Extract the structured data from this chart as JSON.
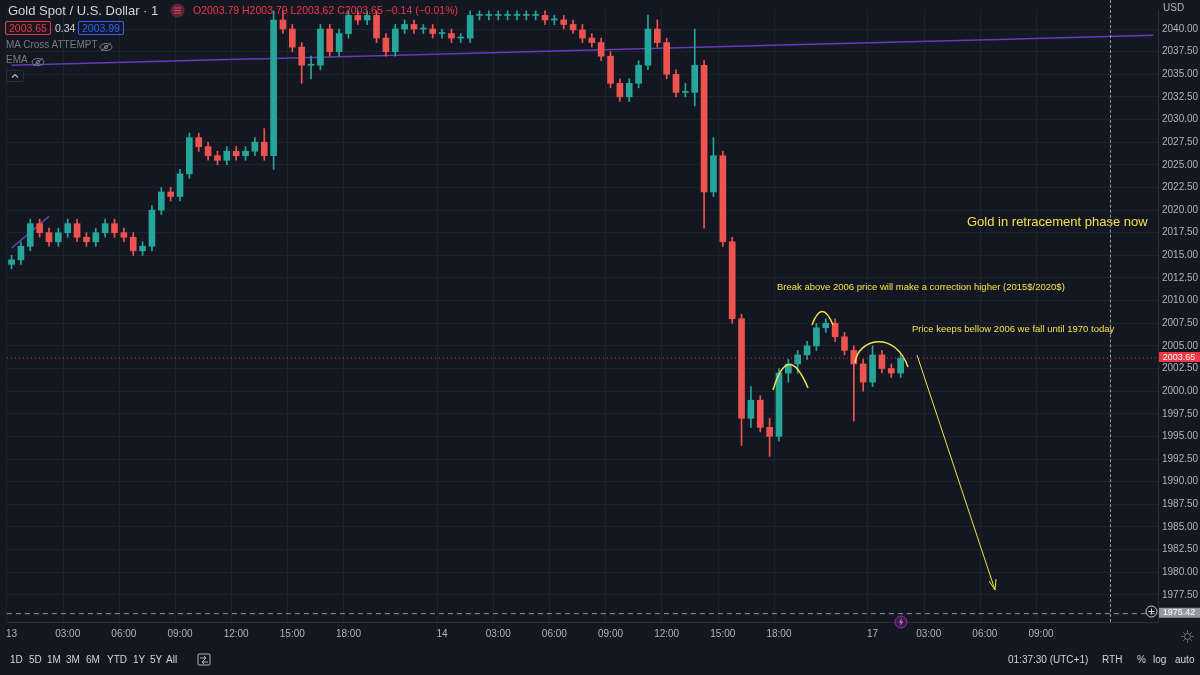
{
  "chart_data": {
    "type": "candlestick",
    "title": "Gold Spot / U.S. Dollar · 1",
    "subtitle": "O2003.79 H2003.79 L2003.62 C2003.65 −0.14 (−0.01%)",
    "ylabel": "USD",
    "categories": [
      "13",
      null,
      null,
      null,
      null,
      null,
      "03:00",
      null,
      null,
      null,
      null,
      null,
      "06:00",
      null,
      null,
      null,
      null,
      null,
      "09:00",
      null,
      null,
      null,
      null,
      null,
      "12:00",
      null,
      null,
      null,
      null,
      null,
      "15:00",
      null,
      null,
      null,
      null,
      null,
      "18:00",
      null,
      null,
      null,
      null,
      null,
      null,
      null,
      null,
      null,
      "14",
      null,
      null,
      null,
      null,
      null,
      "03:00",
      null,
      null,
      null,
      null,
      null,
      "06:00",
      null,
      null,
      null,
      null,
      null,
      "09:00",
      null,
      null,
      null,
      null,
      null,
      "12:00",
      null,
      null,
      null,
      null,
      null,
      "15:00",
      null,
      null,
      null,
      null,
      null,
      "18:00",
      null,
      null,
      null,
      null,
      null,
      null,
      null,
      null,
      null,
      "17",
      null,
      null,
      null,
      null,
      null,
      "03:00",
      null,
      null,
      null,
      null,
      null,
      "06:00",
      null,
      null,
      null,
      null,
      null,
      "09:00",
      null,
      null,
      null,
      null,
      null,
      null,
      null,
      null,
      null,
      null,
      null,
      null
    ],
    "ohlc": [
      [
        2014,
        2015,
        2013.5,
        2014.5
      ],
      [
        2014.5,
        2016.5,
        2014,
        2016
      ],
      [
        2016,
        2019,
        2015.5,
        2018.5
      ],
      [
        2018.5,
        2019,
        2017,
        2017.5
      ],
      [
        2017.5,
        2018,
        2016,
        2016.5
      ],
      [
        2016.5,
        2018,
        2016,
        2017.5
      ],
      [
        2017.5,
        2019,
        2017,
        2018.5
      ],
      [
        2018.5,
        2019,
        2016.5,
        2017
      ],
      [
        2017,
        2017.5,
        2016,
        2016.5
      ],
      [
        2016.5,
        2018,
        2016,
        2017.5
      ],
      [
        2017.5,
        2019,
        2017,
        2018.5
      ],
      [
        2018.5,
        2019,
        2017,
        2017.5
      ],
      [
        2017.5,
        2018,
        2016.5,
        2017
      ],
      [
        2017,
        2017.5,
        2015,
        2015.5
      ],
      [
        2015.5,
        2016.5,
        2015,
        2016
      ],
      [
        2016,
        2020.5,
        2015.5,
        2020
      ],
      [
        2020,
        2022.5,
        2019.5,
        2022
      ],
      [
        2022,
        2022.5,
        2021,
        2021.5
      ],
      [
        2021.5,
        2024.5,
        2021,
        2024
      ],
      [
        2024,
        2028.5,
        2023.5,
        2028
      ],
      [
        2028,
        2028.5,
        2026.5,
        2027
      ],
      [
        2027,
        2027.5,
        2025.5,
        2026
      ],
      [
        2026,
        2026.5,
        2025,
        2025.5
      ],
      [
        2025.5,
        2027,
        2025,
        2026.5
      ],
      [
        2026.5,
        2027,
        2025.5,
        2026
      ],
      [
        2026,
        2027,
        2025.5,
        2026.5
      ],
      [
        2026.5,
        2028,
        2026,
        2027.5
      ],
      [
        2027.5,
        2029,
        2025.5,
        2026
      ],
      [
        2026,
        2042,
        2024.5,
        2041
      ],
      [
        2041,
        2042,
        2039.5,
        2040
      ],
      [
        2040,
        2040.5,
        2037.5,
        2038
      ],
      [
        2038,
        2038.5,
        2034,
        2036
      ],
      [
        2036,
        2037,
        2034.5,
        2036
      ],
      [
        2036,
        2040.5,
        2035.5,
        2040
      ],
      [
        2040,
        2040.5,
        2037,
        2037.5
      ],
      [
        2037.5,
        2040,
        2037,
        2039.5
      ],
      [
        2039.5,
        2042,
        2039,
        2041.5
      ],
      [
        2041.5,
        2042,
        2040.5,
        2041
      ],
      [
        2041,
        2042,
        2040.5,
        2041.5
      ],
      [
        2041.5,
        2042,
        2038.5,
        2039
      ],
      [
        2039,
        2039.5,
        2037,
        2037.5
      ],
      [
        2037.5,
        2040.5,
        2037,
        2040
      ],
      [
        2040,
        2041,
        2039.5,
        2040.5
      ],
      [
        2040.5,
        2041,
        2039.5,
        2040
      ],
      [
        2040,
        2040.5,
        2039.5,
        2040
      ],
      [
        2040,
        2040.5,
        2039,
        2039.5
      ],
      [
        2039.5,
        2040,
        2039,
        2039.5
      ],
      [
        2039.5,
        2040,
        2038.5,
        2039
      ],
      [
        2039,
        2039.5,
        2038.5,
        2039
      ],
      [
        2039,
        2042,
        2038.5,
        2041.5
      ],
      [
        2041.5,
        2042,
        2041,
        2041.5
      ],
      [
        2041.5,
        2042,
        2041,
        2041.5
      ],
      [
        2041.5,
        2042,
        2041,
        2041.5
      ],
      [
        2041.5,
        2042,
        2041,
        2041.5
      ],
      [
        2041.5,
        2042,
        2041,
        2041.5
      ],
      [
        2041.5,
        2042,
        2041,
        2041.5
      ],
      [
        2041.5,
        2042,
        2041,
        2041.5
      ],
      [
        2041.5,
        2042,
        2040.5,
        2041
      ],
      [
        2041,
        2041.5,
        2040.5,
        2041
      ],
      [
        2041,
        2041.5,
        2040,
        2040.5
      ],
      [
        2040.5,
        2041,
        2039.5,
        2039.9
      ],
      [
        2039.9,
        2040.5,
        2038.5,
        2039
      ],
      [
        2039,
        2039.5,
        2038,
        2038.5
      ],
      [
        2038.5,
        2039,
        2036.5,
        2037
      ],
      [
        2037,
        2037.5,
        2033.5,
        2034
      ],
      [
        2034,
        2034.5,
        2032,
        2032.5
      ],
      [
        2032.5,
        2034.5,
        2032,
        2034
      ],
      [
        2034,
        2036.5,
        2033.5,
        2036
      ],
      [
        2036,
        2041.5,
        2035.5,
        2040
      ],
      [
        2040,
        2041,
        2038,
        2038.5
      ],
      [
        2038.5,
        2039,
        2034.5,
        2035
      ],
      [
        2035,
        2035.5,
        2032.5,
        2033
      ],
      [
        2033,
        2034,
        2032.5,
        2033
      ],
      [
        2033,
        2040,
        2031.5,
        2036
      ],
      [
        2036,
        2036.5,
        2018,
        2022
      ],
      [
        2022,
        2028,
        2021.5,
        2026
      ],
      [
        2026,
        2026.5,
        2016,
        2016.5
      ],
      [
        2016.5,
        2017,
        2007.5,
        2008
      ],
      [
        2008,
        2008.5,
        1994,
        1997
      ],
      [
        1997,
        2000.5,
        1996,
        1999
      ],
      [
        1999,
        1999.5,
        1995.5,
        1996
      ],
      [
        1996,
        1997,
        1992.8,
        1995
      ],
      [
        1995,
        2002.5,
        1994.5,
        2002
      ],
      [
        2002,
        2003.5,
        2001,
        2003
      ],
      [
        2003,
        2004.5,
        2002,
        2004
      ],
      [
        2004,
        2005.5,
        2003.5,
        2005
      ],
      [
        2005,
        2007.5,
        2004.5,
        2007
      ],
      [
        2007,
        2008,
        2006.5,
        2007.5
      ],
      [
        2007.5,
        2008,
        2005.5,
        2006
      ],
      [
        2006,
        2006.5,
        2004,
        2004.5
      ],
      [
        2004.5,
        2005,
        1996.7,
        2003
      ],
      [
        2003,
        2003.5,
        2000,
        2001
      ],
      [
        2001,
        2005,
        2000.5,
        2004
      ],
      [
        2004,
        2004.5,
        2002,
        2002.5
      ],
      [
        2002.5,
        2003,
        2001.5,
        2002
      ],
      [
        2002,
        2004,
        2001.5,
        2003.65
      ],
      null,
      null,
      null,
      null,
      null,
      null,
      null,
      null,
      null,
      null,
      null,
      null,
      null,
      null,
      null,
      null,
      null,
      null,
      null,
      null,
      null,
      null,
      null,
      null,
      null,
      null,
      null
    ],
    "colors": [
      "#26a69a",
      "#26a69a",
      "#26a69a",
      "#ef5350",
      "#ef5350",
      "#26a69a",
      "#26a69a",
      "#ef5350",
      "#ef5350",
      "#26a69a",
      "#26a69a",
      "#ef5350",
      "#ef5350",
      "#ef5350",
      "#26a69a",
      "#26a69a",
      "#26a69a",
      "#ef5350",
      "#26a69a",
      "#26a69a",
      "#ef5350",
      "#ef5350",
      "#ef5350",
      "#26a69a",
      "#ef5350",
      "#26a69a",
      "#26a69a",
      "#ef5350",
      "#26a69a",
      "#ef5350",
      "#ef5350",
      "#ef5350",
      "#26a69a",
      "#26a69a",
      "#ef5350",
      "#26a69a",
      "#26a69a",
      "#ef5350",
      "#26a69a",
      "#ef5350",
      "#ef5350",
      "#26a69a",
      "#26a69a",
      "#ef5350",
      "#26a69a",
      "#ef5350",
      "#26a69a",
      "#ef5350",
      "#26a69a",
      "#26a69a",
      "#26a69a",
      "#26a69a",
      "#26a69a",
      "#26a69a",
      "#26a69a",
      "#26a69a",
      "#26a69a",
      "#ef5350",
      "#26a69a",
      "#ef5350",
      "#ef5350",
      "#ef5350",
      "#ef5350",
      "#ef5350",
      "#ef5350",
      "#ef5350",
      "#26a69a",
      "#26a69a",
      "#26a69a",
      "#ef5350",
      "#ef5350",
      "#ef5350",
      "#26a69a",
      "#26a69a",
      "#ef5350",
      "#26a69a",
      "#ef5350",
      "#ef5350",
      "#ef5350",
      "#26a69a",
      "#ef5350",
      "#ef5350",
      "#26a69a",
      "#26a69a",
      "#26a69a",
      "#26a69a",
      "#26a69a",
      "#26a69a",
      "#ef5350",
      "#ef5350",
      "#ef5350",
      "#ef5350",
      "#26a69a",
      "#ef5350",
      "#ef5350",
      "#26a69a",
      null,
      null,
      null,
      null,
      null,
      null,
      null,
      null,
      null,
      null,
      null,
      null,
      null,
      null,
      null,
      null,
      null,
      null,
      null,
      null,
      null,
      null,
      null,
      null,
      null,
      null,
      null
    ],
    "series": [
      {
        "type": "line",
        "color": "#673ab7",
        "values": [
          2036.0,
          null,
          null,
          null,
          null,
          null,
          null,
          null,
          null,
          null,
          null,
          null,
          null,
          null,
          null,
          null,
          null,
          null,
          null,
          null,
          null,
          null,
          null,
          null,
          null,
          null,
          null,
          null,
          null,
          null,
          null,
          null,
          null,
          null,
          null,
          null,
          null,
          null,
          null,
          null,
          null,
          null,
          null,
          null,
          null,
          null,
          null,
          null,
          null,
          null,
          null,
          null,
          null,
          null,
          null,
          null,
          null,
          null,
          null,
          null,
          null,
          null,
          null,
          null,
          null,
          null,
          null,
          null,
          null,
          null,
          null,
          null,
          null,
          null,
          null,
          null,
          null,
          null,
          null,
          null,
          null,
          null,
          null,
          null,
          null,
          null,
          null,
          null,
          null,
          null,
          null,
          null,
          null,
          null,
          null,
          null,
          null,
          null,
          null,
          null,
          null,
          null,
          null,
          null,
          null,
          null,
          null,
          null,
          null,
          null,
          null,
          null,
          null,
          null,
          null,
          null,
          null,
          null,
          null,
          null,
          null,
          null,
          2039.3
        ]
      },
      {
        "type": "line",
        "color": "#673ab7",
        "values": [
          2015.8,
          null,
          null,
          null,
          2019.3,
          null,
          null,
          null,
          null,
          null,
          null,
          null,
          null,
          null,
          null,
          null,
          null,
          null,
          null,
          null,
          null,
          null,
          null,
          null,
          null,
          null,
          null,
          null,
          null,
          null,
          null,
          null,
          null,
          null,
          null,
          null,
          null,
          null,
          null,
          null,
          null,
          null,
          null,
          null,
          null,
          null,
          null,
          null,
          null,
          null,
          null,
          null,
          null,
          null,
          null,
          null,
          null,
          null,
          null,
          null,
          null,
          null,
          null,
          null,
          null,
          null,
          null,
          null,
          null,
          null,
          null,
          null,
          null,
          null,
          null,
          null,
          null,
          null,
          null,
          null,
          null,
          null,
          null,
          null,
          null,
          null,
          null,
          null,
          null,
          null,
          null,
          null,
          null,
          null,
          null,
          null,
          null,
          null,
          null,
          null,
          null,
          null,
          null,
          null,
          null,
          null,
          null,
          null,
          null,
          null,
          null,
          null,
          null,
          null,
          null,
          null,
          null,
          null,
          null,
          null,
          null,
          null,
          null
        ]
      }
    ],
    "ylim": [
      1974.5,
      2042.1
    ],
    "yticks": [
      {
        "value": 1977.5,
        "label": "1977.50"
      },
      {
        "value": 1980,
        "label": "1980.00"
      },
      {
        "value": 1982.5,
        "label": "1982.50"
      },
      {
        "value": 1985,
        "label": "1985.00"
      },
      {
        "value": 1987.5,
        "label": "1987.50"
      },
      {
        "value": 1990,
        "label": "1990.00"
      },
      {
        "value": 1992.5,
        "label": "1992.50"
      },
      {
        "value": 1995,
        "label": "1995.00"
      },
      {
        "value": 1997.5,
        "label": "1997.50"
      },
      {
        "value": 2000,
        "label": "2000.00"
      },
      {
        "value": 2002.5,
        "label": "2002.50"
      },
      {
        "value": 2005,
        "label": "2005.00"
      },
      {
        "value": 2007.5,
        "label": "2007.50"
      },
      {
        "value": 2010,
        "label": "2010.00"
      },
      {
        "value": 2012.5,
        "label": "2012.50"
      },
      {
        "value": 2015,
        "label": "2015.00"
      },
      {
        "value": 2017.5,
        "label": "2017.50"
      },
      {
        "value": 2020,
        "label": "2020.00"
      },
      {
        "value": 2022.5,
        "label": "2022.50"
      },
      {
        "value": 2025,
        "label": "2025.00"
      },
      {
        "value": 2027.5,
        "label": "2027.50"
      },
      {
        "value": 2030,
        "label": "2030.00"
      },
      {
        "value": 2032.5,
        "label": "2032.50"
      },
      {
        "value": 2035,
        "label": "2035.00"
      },
      {
        "value": 2037.5,
        "label": "2037.50"
      },
      {
        "value": 2040,
        "label": "2040.00"
      }
    ],
    "grid": true,
    "ref_lines": [
      {
        "axis": "y",
        "value": 2003.65,
        "label": "2003.65",
        "color": "#f23645",
        "line_style": "dotted"
      },
      {
        "axis": "y",
        "value": 1975.42,
        "label": "1975.42",
        "color": "#9598a1",
        "line_style": "dashed"
      }
    ],
    "annotations": [
      "2003.65",
      "0.34",
      "2003.99",
      "MA Cross ATTEMPT",
      "EMA",
      "Gold in retracement phase now",
      "Break above 2006 price will make a correction higher (2015$/2020$)",
      "Price keeps bellow 2006 we fall until 1970 today",
      "1D",
      "5D",
      "1M",
      "3M",
      "6M",
      "YTD",
      "1Y",
      "5Y",
      "All",
      "01:37:30 (UTC+1)",
      "RTH",
      "%",
      "log",
      "auto"
    ]
  }
}
